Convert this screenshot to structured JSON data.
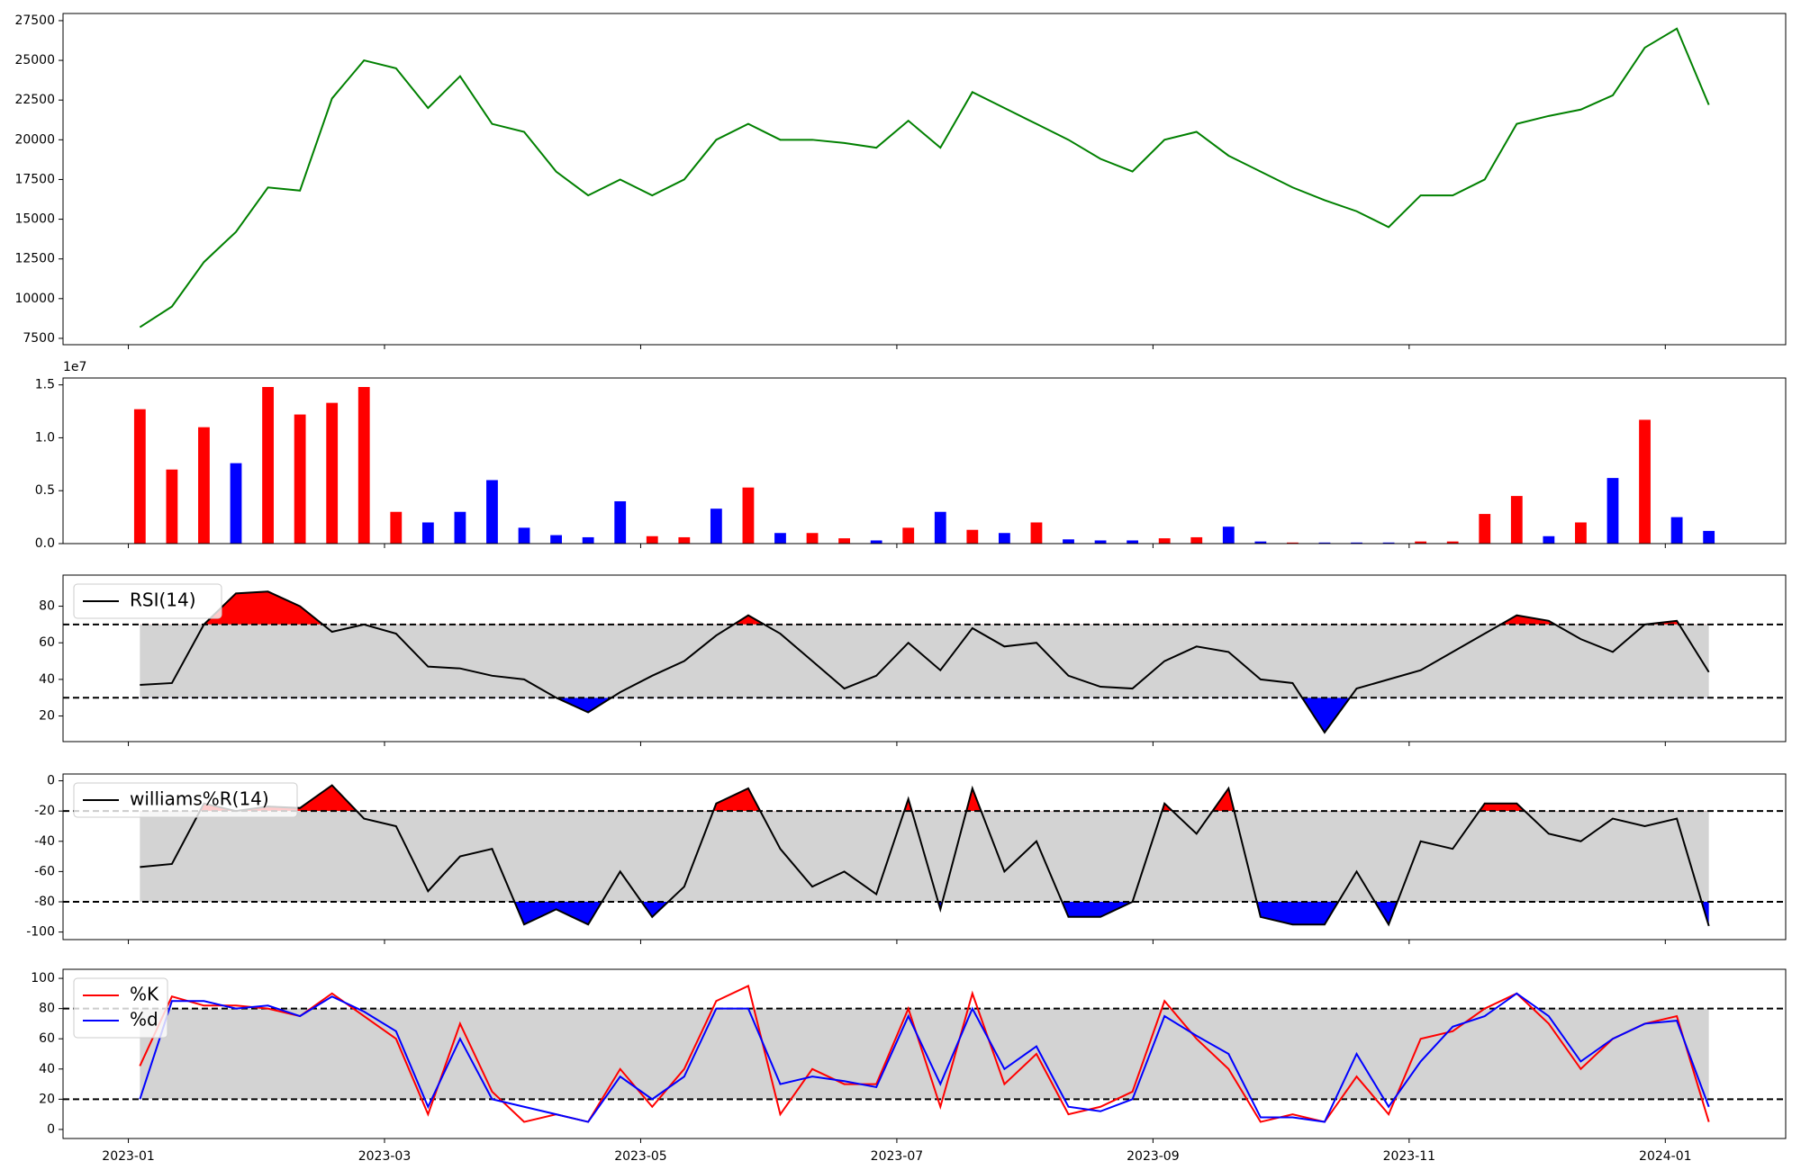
{
  "chart_data": [
    {
      "type": "line",
      "color": "green",
      "x": [
        0.09,
        0.34,
        0.59,
        0.84,
        1.09,
        1.34,
        1.59,
        1.84,
        2.09,
        2.34,
        2.59,
        2.84,
        3.09,
        3.34,
        3.59,
        3.84,
        4.09,
        4.34,
        4.59,
        4.84,
        5.09,
        5.34,
        5.59,
        5.84,
        6.09,
        6.34,
        6.59,
        6.84,
        7.09,
        7.34,
        7.59,
        7.84,
        8.09,
        8.34,
        8.59,
        8.84,
        9.09,
        9.34,
        9.59,
        9.84,
        10.09,
        10.34,
        10.59,
        10.84,
        11.09,
        11.34,
        11.59,
        11.84,
        12.09,
        12.34
      ],
      "values": [
        8200,
        9500,
        12300,
        14200,
        17000,
        16800,
        22600,
        25000,
        24500,
        22000,
        24000,
        21000,
        20500,
        18000,
        16500,
        17500,
        16500,
        17500,
        20000,
        21000,
        20000,
        20000,
        19800,
        19500,
        21200,
        19500,
        23000,
        22000,
        21000,
        20000,
        18800,
        18000,
        20000,
        20500,
        19000,
        18000,
        17000,
        16200,
        15500,
        14500,
        16500,
        16500,
        17500,
        21000,
        21500,
        21900,
        22800,
        25800,
        27000,
        22200
      ],
      "xlim": [
        -0.51,
        12.94
      ],
      "ylim": [
        7100,
        27950
      ],
      "yticks": [
        7500,
        10000,
        12500,
        15000,
        17500,
        20000,
        22500,
        25000,
        27500
      ]
    },
    {
      "type": "bar",
      "offset_label": "1e7",
      "x": [
        0.09,
        0.34,
        0.59,
        0.84,
        1.09,
        1.34,
        1.59,
        1.84,
        2.09,
        2.34,
        2.59,
        2.84,
        3.09,
        3.34,
        3.59,
        3.84,
        4.09,
        4.34,
        4.59,
        4.84,
        5.09,
        5.34,
        5.59,
        5.84,
        6.09,
        6.34,
        6.59,
        6.84,
        7.09,
        7.34,
        7.59,
        7.84,
        8.09,
        8.34,
        8.59,
        8.84,
        9.09,
        9.34,
        9.59,
        9.84,
        10.09,
        10.34,
        10.59,
        10.84,
        11.09,
        11.34,
        11.59,
        11.84,
        12.09,
        12.34
      ],
      "values": [
        12700000,
        7000000,
        11000000,
        7600000,
        14800000,
        12200000,
        13300000,
        14800000,
        3000000,
        2000000,
        3000000,
        6000000,
        1500000,
        800000,
        600000,
        4000000,
        700000,
        600000,
        3300000,
        5300000,
        1000000,
        1000000,
        500000,
        300000,
        1500000,
        3000000,
        1300000,
        1000000,
        2000000,
        400000,
        300000,
        300000,
        500000,
        600000,
        1600000,
        200000,
        100000,
        100000,
        100000,
        100000,
        200000,
        200000,
        2800000,
        4500000,
        700000,
        2000000,
        6200000,
        11700000,
        2500000,
        1200000
      ],
      "colors": [
        "red",
        "red",
        "red",
        "blue",
        "red",
        "red",
        "red",
        "red",
        "red",
        "blue",
        "blue",
        "blue",
        "blue",
        "blue",
        "blue",
        "blue",
        "red",
        "red",
        "blue",
        "red",
        "blue",
        "red",
        "red",
        "blue",
        "red",
        "blue",
        "red",
        "blue",
        "red",
        "blue",
        "blue",
        "blue",
        "red",
        "red",
        "blue",
        "blue",
        "red",
        "blue",
        "blue",
        "blue",
        "red",
        "red",
        "red",
        "red",
        "blue",
        "red",
        "blue",
        "red",
        "blue",
        "blue"
      ],
      "xlim": [
        -0.51,
        12.94
      ],
      "ylim": [
        0,
        15650000
      ],
      "yticks": [
        {
          "value": 0,
          "label": "0.0"
        },
        {
          "value": 5000000,
          "label": "0.5"
        },
        {
          "value": 10000000,
          "label": "1.0"
        },
        {
          "value": 15000000,
          "label": "1.5"
        }
      ]
    },
    {
      "type": "line",
      "legend": "upper left",
      "hlines": [
        70,
        30
      ],
      "band_color": "#d3d3d3",
      "upper_fill_color": "red",
      "lower_fill_color": "blue",
      "x": [
        0.09,
        0.34,
        0.59,
        0.84,
        1.09,
        1.34,
        1.59,
        1.84,
        2.09,
        2.34,
        2.59,
        2.84,
        3.09,
        3.34,
        3.59,
        3.84,
        4.09,
        4.34,
        4.59,
        4.84,
        5.09,
        5.34,
        5.59,
        5.84,
        6.09,
        6.34,
        6.59,
        6.84,
        7.09,
        7.34,
        7.59,
        7.84,
        8.09,
        8.34,
        8.59,
        8.84,
        9.09,
        9.34,
        9.59,
        9.84,
        10.09,
        10.34,
        10.59,
        10.84,
        11.09,
        11.34,
        11.59,
        11.84,
        12.09,
        12.34
      ],
      "series": [
        {
          "name": "RSI(14)",
          "color": "black",
          "values": [
            37,
            38,
            70,
            87,
            88,
            80,
            66,
            70,
            65,
            47,
            46,
            42,
            40,
            30,
            22,
            33,
            42,
            50,
            64,
            75,
            65,
            50,
            35,
            42,
            60,
            45,
            68,
            58,
            60,
            42,
            36,
            35,
            50,
            58,
            55,
            40,
            38,
            11,
            35,
            40,
            45,
            55,
            65,
            75,
            72,
            62,
            55,
            70,
            72,
            44
          ]
        }
      ],
      "xlim": [
        -0.51,
        12.94
      ],
      "ylim": [
        6,
        97
      ],
      "yticks": [
        20,
        40,
        60,
        80
      ]
    },
    {
      "type": "line",
      "legend": "upper left",
      "hlines": [
        -20,
        -80
      ],
      "band_color": "#d3d3d3",
      "upper_fill_color": "red",
      "lower_fill_color": "blue",
      "x": [
        0.09,
        0.34,
        0.59,
        0.84,
        1.09,
        1.34,
        1.59,
        1.84,
        2.09,
        2.34,
        2.59,
        2.84,
        3.09,
        3.34,
        3.59,
        3.84,
        4.09,
        4.34,
        4.59,
        4.84,
        5.09,
        5.34,
        5.59,
        5.84,
        6.09,
        6.34,
        6.59,
        6.84,
        7.09,
        7.34,
        7.59,
        7.84,
        8.09,
        8.34,
        8.59,
        8.84,
        9.09,
        9.34,
        9.59,
        9.84,
        10.09,
        10.34,
        10.59,
        10.84,
        11.09,
        11.34,
        11.59,
        11.84,
        12.09,
        12.34
      ],
      "series": [
        {
          "name": "williams%R(14)",
          "color": "black",
          "values": [
            -57,
            -55,
            -15,
            -20,
            -17,
            -18,
            -3,
            -25,
            -30,
            -73,
            -50,
            -45,
            -95,
            -85,
            -95,
            -60,
            -90,
            -70,
            -15,
            -5,
            -45,
            -70,
            -60,
            -75,
            -12,
            -85,
            -5,
            -60,
            -40,
            -90,
            -90,
            -80,
            -15,
            -35,
            -5,
            -90,
            -95,
            -95,
            -60,
            -95,
            -40,
            -45,
            -15,
            -15,
            -35,
            -40,
            -25,
            -30,
            -25,
            -96
          ]
        }
      ],
      "xlim": [
        -0.51,
        12.94
      ],
      "ylim": [
        -105,
        4.5
      ],
      "yticks": [
        -100,
        -80,
        -60,
        -40,
        -20,
        0
      ]
    },
    {
      "type": "line",
      "legend": "upper left",
      "hlines": [
        80,
        20
      ],
      "band_color": "#d3d3d3",
      "x": [
        0.09,
        0.34,
        0.59,
        0.84,
        1.09,
        1.34,
        1.59,
        1.84,
        2.09,
        2.34,
        2.59,
        2.84,
        3.09,
        3.34,
        3.59,
        3.84,
        4.09,
        4.34,
        4.59,
        4.84,
        5.09,
        5.34,
        5.59,
        5.84,
        6.09,
        6.34,
        6.59,
        6.84,
        7.09,
        7.34,
        7.59,
        7.84,
        8.09,
        8.34,
        8.59,
        8.84,
        9.09,
        9.34,
        9.59,
        9.84,
        10.09,
        10.34,
        10.59,
        10.84,
        11.09,
        11.34,
        11.59,
        11.84,
        12.09,
        12.34
      ],
      "series": [
        {
          "name": "%K",
          "color": "red",
          "values": [
            42,
            88,
            82,
            82,
            80,
            75,
            90,
            75,
            60,
            10,
            70,
            25,
            5,
            10,
            5,
            40,
            15,
            40,
            85,
            95,
            10,
            40,
            30,
            30,
            80,
            15,
            90,
            30,
            50,
            10,
            15,
            25,
            85,
            60,
            40,
            5,
            10,
            5,
            35,
            10,
            60,
            65,
            80,
            90,
            70,
            40,
            60,
            70,
            75,
            5
          ]
        },
        {
          "name": "%d",
          "color": "blue",
          "values": [
            20,
            85,
            85,
            80,
            82,
            75,
            88,
            78,
            65,
            15,
            60,
            20,
            15,
            10,
            5,
            35,
            20,
            35,
            80,
            80,
            30,
            35,
            32,
            28,
            75,
            30,
            80,
            40,
            55,
            15,
            12,
            20,
            75,
            62,
            50,
            8,
            8,
            5,
            50,
            15,
            45,
            68,
            75,
            90,
            75,
            45,
            60,
            70,
            72,
            15
          ]
        }
      ],
      "xlim": [
        -0.51,
        12.94
      ],
      "ylim": [
        -6,
        106
      ],
      "yticks": [
        0,
        20,
        40,
        60,
        80,
        100
      ],
      "xticks": [
        {
          "value": 0,
          "label": "2023-01"
        },
        {
          "value": 2,
          "label": "2023-03"
        },
        {
          "value": 4,
          "label": "2023-05"
        },
        {
          "value": 6,
          "label": "2023-07"
        },
        {
          "value": 8,
          "label": "2023-09"
        },
        {
          "value": 10,
          "label": "2023-11"
        },
        {
          "value": 12,
          "label": "2024-01"
        }
      ]
    }
  ]
}
